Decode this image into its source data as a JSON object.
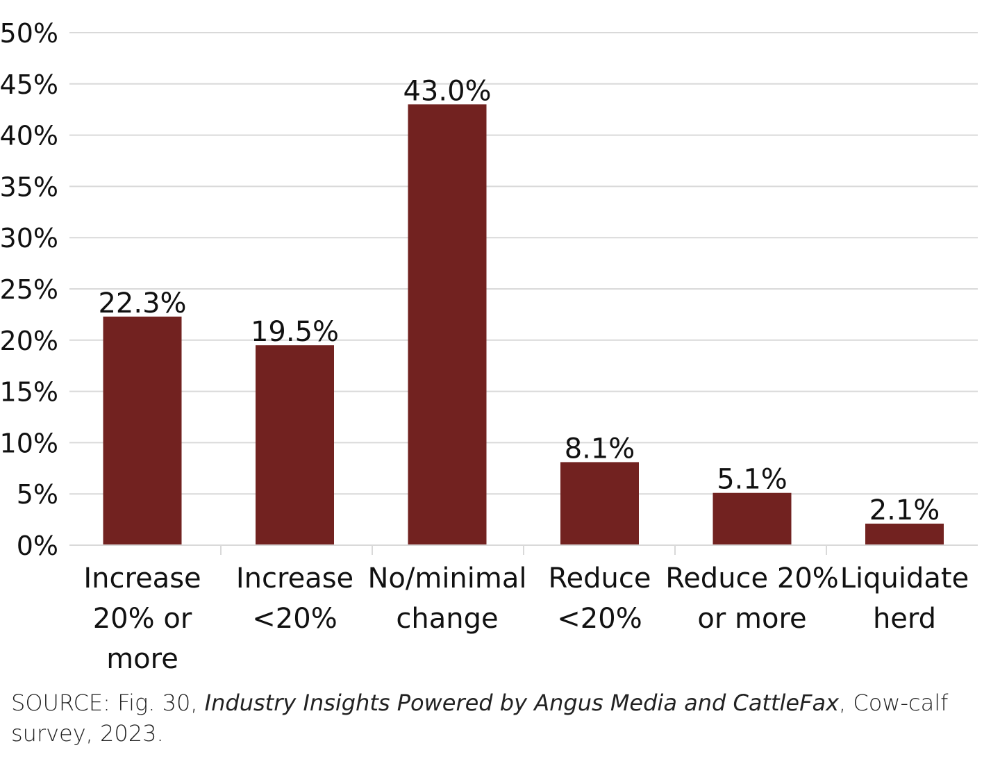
{
  "chart_data": {
    "type": "bar",
    "categories": [
      [
        "Increase",
        "20% or",
        "more"
      ],
      [
        "Increase",
        "<20%"
      ],
      [
        "No/minimal",
        "change"
      ],
      [
        "Reduce",
        "<20%"
      ],
      [
        "Reduce 20%",
        "or more"
      ],
      [
        "Liquidate",
        "herd"
      ]
    ],
    "values": [
      22.3,
      19.5,
      43.0,
      8.1,
      5.1,
      2.1
    ],
    "data_labels": [
      "22.3%",
      "19.5%",
      "43.0%",
      "8.1%",
      "5.1%",
      "2.1%"
    ],
    "ylim": [
      0,
      50
    ],
    "yticks": [
      0,
      5,
      10,
      15,
      20,
      25,
      30,
      35,
      40,
      45,
      50
    ],
    "ytick_labels": [
      "0%",
      "5%",
      "10%",
      "15%",
      "20%",
      "25%",
      "30%",
      "35%",
      "40%",
      "45%",
      "50%"
    ],
    "grid": true,
    "bar_color": "#722220",
    "grid_color": "#d9d9d9",
    "xlabel": "",
    "ylabel": ""
  },
  "source": {
    "prefix": "SOURCE: Fig. 30, ",
    "title": "Industry Insights Powered by Angus Media and CattleFax",
    "suffix": ", Cow-calf survey, 2023."
  }
}
